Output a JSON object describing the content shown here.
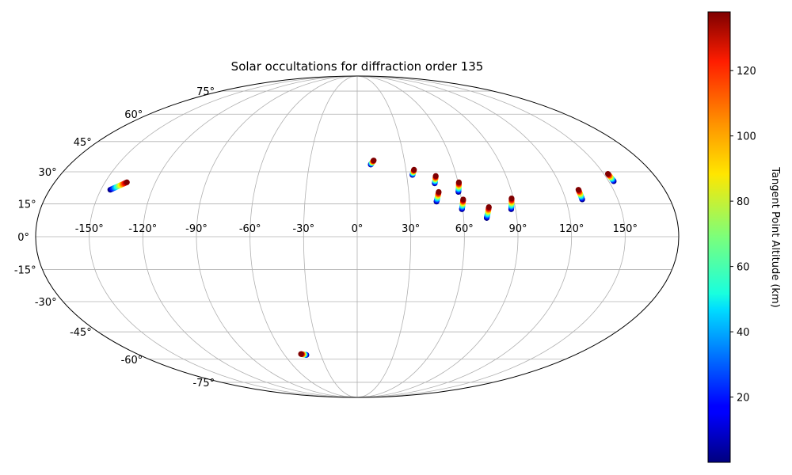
{
  "chart_data": {
    "type": "scatter",
    "projection": "mollweide",
    "title": "Solar occultations for diffraction order 135",
    "x_ticks": [
      "-150°",
      "-120°",
      "-90°",
      "-60°",
      "-30°",
      "0°",
      "30°",
      "60°",
      "90°",
      "120°",
      "150°"
    ],
    "x_tick_values": [
      -150,
      -120,
      -90,
      -60,
      -30,
      0,
      30,
      60,
      90,
      120,
      150
    ],
    "y_ticks": [
      "-75°",
      "-60°",
      "-45°",
      "-30°",
      "-15°",
      "0°",
      "15°",
      "30°",
      "45°",
      "60°",
      "75°"
    ],
    "y_tick_values": [
      -75,
      -60,
      -45,
      -30,
      -15,
      0,
      15,
      30,
      45,
      60,
      75
    ],
    "xlim": [
      -180,
      180
    ],
    "ylim": [
      -90,
      90
    ],
    "grid": true,
    "colormap": "jet",
    "colorbar": {
      "label": "Tangent Point Altitude (km)",
      "range": [
        0,
        138
      ],
      "ticks": [
        "20",
        "40",
        "60",
        "80",
        "100",
        "120"
      ],
      "tick_values": [
        20,
        40,
        60,
        80,
        100,
        120
      ]
    },
    "tracks": [
      {
        "lon_bottom": -144.5,
        "lat_bottom": 21.5,
        "lon_top": -137.0,
        "lat_top": 25.0
      },
      {
        "lon_bottom": 8.5,
        "lat_bottom": 33.5,
        "lon_top": 10.5,
        "lat_top": 35.5
      },
      {
        "lon_bottom": 33.5,
        "lat_bottom": 28.5,
        "lon_top": 35.0,
        "lat_top": 31.0
      },
      {
        "lon_bottom": 46.0,
        "lat_bottom": 24.5,
        "lon_top": 47.5,
        "lat_top": 28.0
      },
      {
        "lon_bottom": 45.5,
        "lat_bottom": 16.0,
        "lon_top": 47.5,
        "lat_top": 20.5
      },
      {
        "lon_bottom": 59.0,
        "lat_bottom": 20.5,
        "lon_top": 60.5,
        "lat_top": 25.0
      },
      {
        "lon_bottom": 59.5,
        "lat_bottom": 12.5,
        "lon_top": 61.0,
        "lat_top": 17.0
      },
      {
        "lon_bottom": 73.0,
        "lat_bottom": 8.5,
        "lon_top": 75.0,
        "lat_top": 13.5
      },
      {
        "lon_bottom": 87.5,
        "lat_bottom": 12.5,
        "lon_top": 89.0,
        "lat_top": 17.5
      },
      {
        "lon_bottom": 129.5,
        "lat_bottom": 17.0,
        "lon_top": 129.5,
        "lat_top": 21.5
      },
      {
        "lon_bottom": 153.0,
        "lat_bottom": 25.5,
        "lon_top": 152.5,
        "lat_top": 29.0
      },
      {
        "lon_bottom": -42.0,
        "lat_bottom": -57.5,
        "lon_top": -46.0,
        "lat_top": -57.0
      }
    ]
  }
}
